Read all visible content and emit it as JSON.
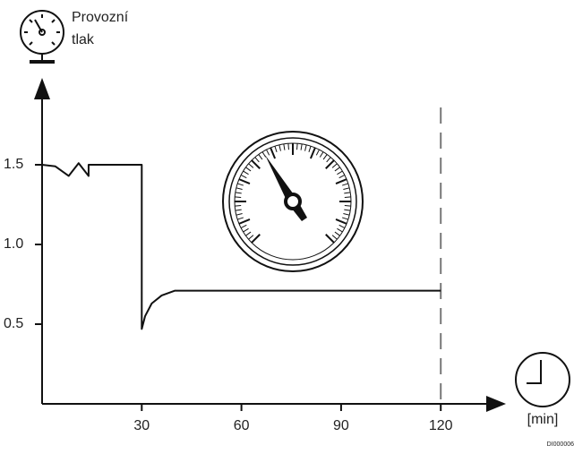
{
  "chart_data": {
    "type": "line",
    "ylabel": [
      "Provozní",
      "tlak"
    ],
    "xlabel": "[min]",
    "figure_id": "DI000006",
    "x": [
      0,
      4,
      8,
      11,
      14,
      14,
      30,
      30,
      31,
      33,
      36,
      40,
      120
    ],
    "series": [
      {
        "color": "#111111",
        "values": [
          1.5,
          1.49,
          1.43,
          1.51,
          1.43,
          1.5,
          1.5,
          0.47,
          0.55,
          0.63,
          0.68,
          0.71,
          0.71
        ]
      }
    ],
    "xlim": [
      0,
      138
    ],
    "ylim": [
      0,
      2
    ],
    "xticks": [
      30,
      60,
      90,
      120
    ],
    "yticks": [
      0.5,
      {
        "value": 1,
        "label": "1.0"
      },
      1.5
    ],
    "vline_x": 120
  }
}
